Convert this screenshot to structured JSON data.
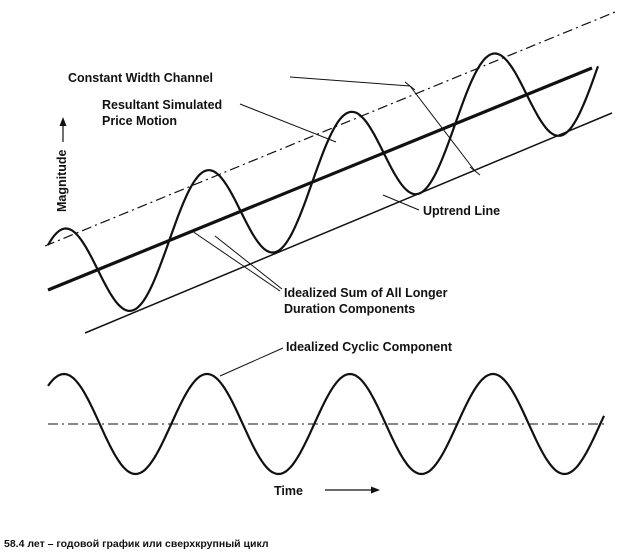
{
  "diagram": {
    "labels": {
      "constant_width_channel": "Constant Width Channel",
      "resultant_line1": "Resultant Simulated",
      "resultant_line2": "Price Motion",
      "uptrend_line": "Uptrend Line",
      "idealized_sum_line1": "Idealized Sum of All Longer",
      "idealized_sum_line2": "Duration Components",
      "idealized_cyclic": "Idealized Cyclic Component",
      "magnitude_axis": "Magnitude",
      "time_axis": "Time"
    }
  },
  "caption": "58.4 лет – годовой график  или сверхкрупный цикл",
  "colors": {
    "ink": "#111111",
    "background": "#ffffff"
  }
}
